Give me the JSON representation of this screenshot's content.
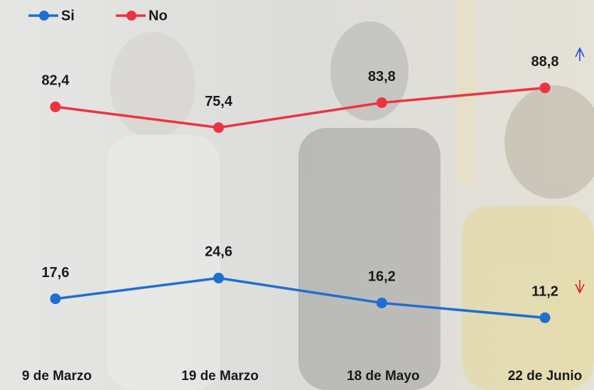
{
  "chart_data": {
    "type": "line",
    "categories": [
      "9 de Marzo",
      "19 de Marzo",
      "18 de Mayo",
      "22 de Junio"
    ],
    "series": [
      {
        "name": "Si",
        "color": "#1f6fd1",
        "values": [
          17.6,
          24.6,
          16.2,
          11.2
        ],
        "value_labels": [
          "17,6",
          "24,6",
          "16,2",
          "11,2"
        ]
      },
      {
        "name": "No",
        "color": "#ee3340",
        "values": [
          82.4,
          75.4,
          83.8,
          88.8
        ],
        "value_labels": [
          "82,4",
          "75,4",
          "83,8",
          "88,8"
        ]
      }
    ],
    "ylim": [
      0,
      100
    ]
  }
}
